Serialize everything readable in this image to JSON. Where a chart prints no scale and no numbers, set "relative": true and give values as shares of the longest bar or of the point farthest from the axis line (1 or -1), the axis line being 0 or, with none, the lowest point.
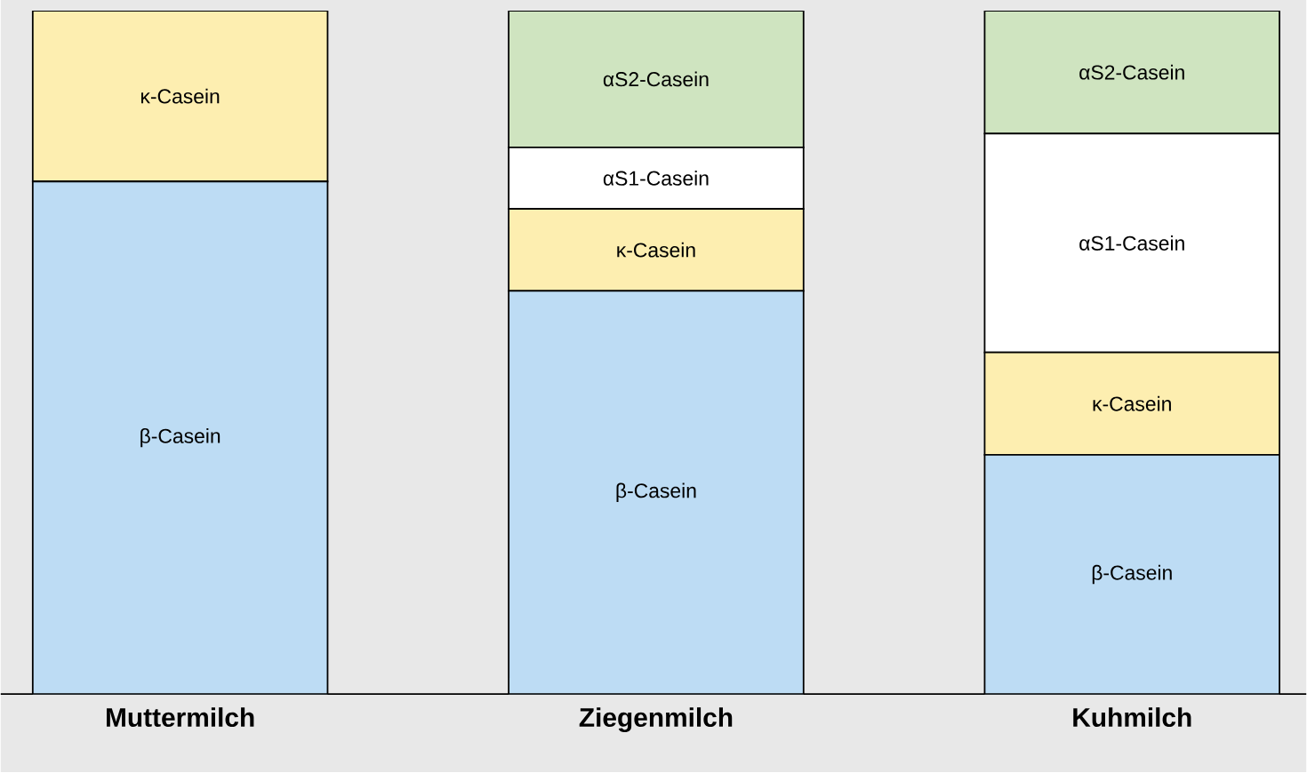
{
  "chart_data": {
    "type": "bar",
    "stacked": true,
    "relative": true,
    "categories": [
      "Muttermilch",
      "Ziegenmilch",
      "Kuhmilch"
    ],
    "series": [
      {
        "name": "β-Casein",
        "color": "#bddcf4",
        "values": [
          0.75,
          0.59,
          0.35
        ]
      },
      {
        "name": "κ-Casein",
        "color": "#fdeeb0",
        "values": [
          0.25,
          0.12,
          0.15
        ]
      },
      {
        "name": "αS1-Casein",
        "color": "#ffffff",
        "values": [
          null,
          0.09,
          0.32
        ]
      },
      {
        "name": "αS2-Casein",
        "color": "#cfe4c0",
        "values": [
          null,
          0.2,
          0.18
        ]
      }
    ]
  }
}
